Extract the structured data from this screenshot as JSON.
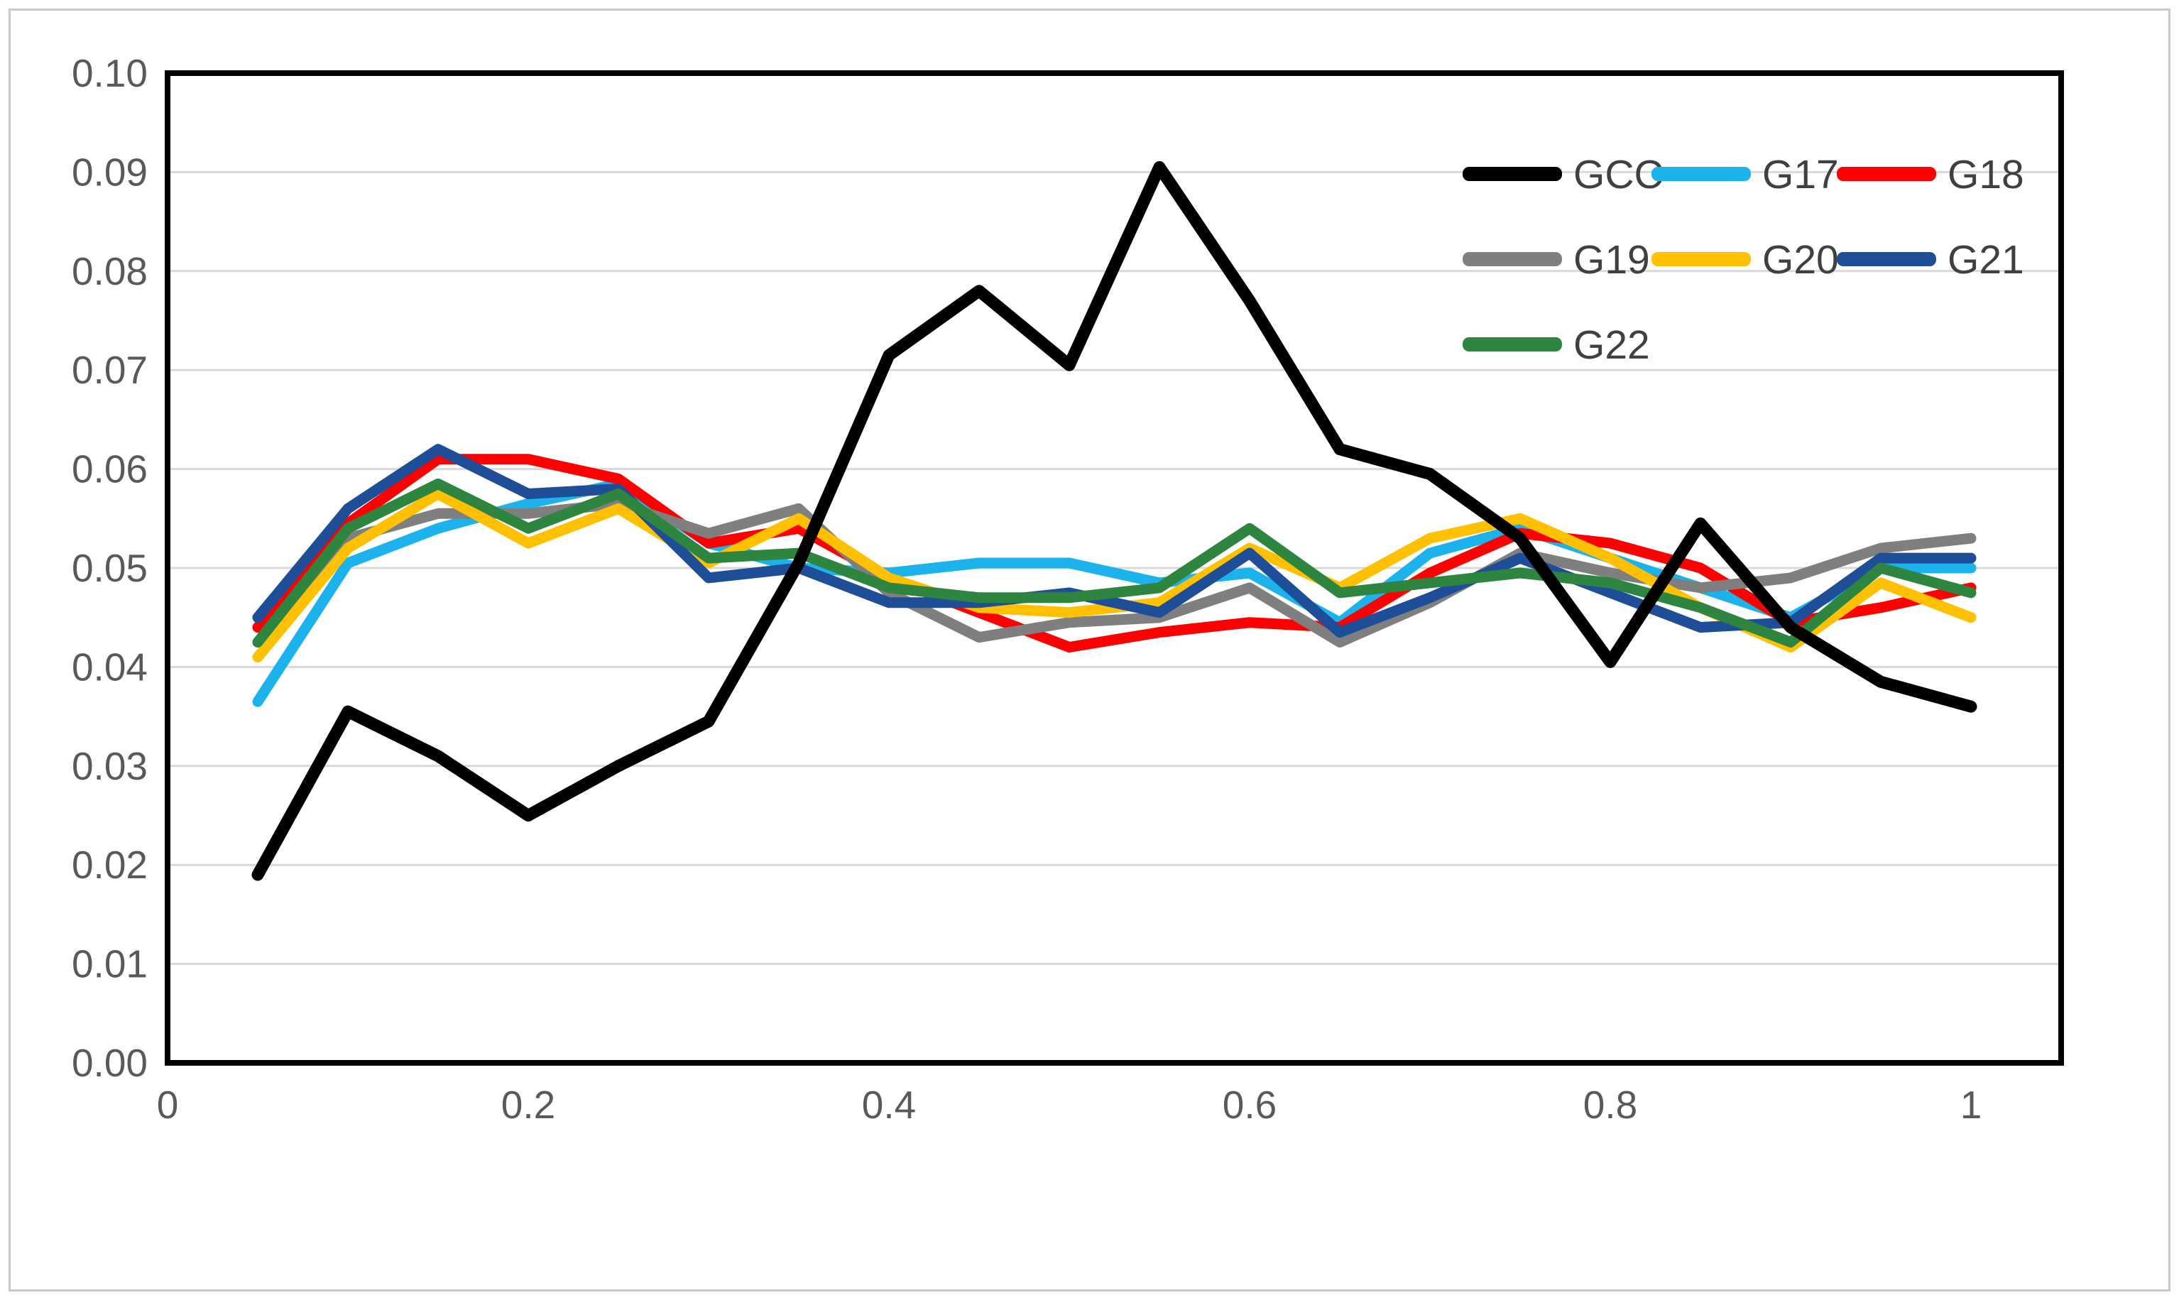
{
  "chart_data": {
    "type": "line",
    "title": "",
    "xlabel": "",
    "ylabel": "",
    "xlim": [
      0,
      1.05
    ],
    "ylim": [
      0,
      0.1
    ],
    "grid": "horizontal-only",
    "x": [
      0.05,
      0.1,
      0.15,
      0.2,
      0.25,
      0.3,
      0.35,
      0.4,
      0.45,
      0.5,
      0.55,
      0.6,
      0.65,
      0.7,
      0.75,
      0.8,
      0.85,
      0.9,
      0.95,
      1.0
    ],
    "series": [
      {
        "name": "GCC",
        "color": "#000000",
        "width": 17,
        "values": [
          0.019,
          0.0355,
          0.031,
          0.025,
          0.03,
          0.0345,
          0.0505,
          0.0715,
          0.078,
          0.0705,
          0.0905,
          0.077,
          0.062,
          0.0595,
          0.053,
          0.0405,
          0.0545,
          0.044,
          0.0385,
          0.036
        ]
      },
      {
        "name": "G17",
        "color": "#1cb2ec",
        "width": 15,
        "values": [
          0.0365,
          0.0505,
          0.054,
          0.0565,
          0.0585,
          0.0525,
          0.05,
          0.0495,
          0.0505,
          0.0505,
          0.0485,
          0.0495,
          0.0445,
          0.0515,
          0.054,
          0.051,
          0.048,
          0.045,
          0.05,
          0.05
        ]
      },
      {
        "name": "G18",
        "color": "#fe0000",
        "width": 15,
        "values": [
          0.044,
          0.0545,
          0.061,
          0.061,
          0.059,
          0.0525,
          0.054,
          0.049,
          0.0455,
          0.042,
          0.0435,
          0.0445,
          0.044,
          0.0495,
          0.0535,
          0.0525,
          0.05,
          0.0445,
          0.046,
          0.048
        ]
      },
      {
        "name": "G19",
        "color": "#7f7f7f",
        "width": 15,
        "values": [
          0.0425,
          0.053,
          0.0555,
          0.0555,
          0.0565,
          0.0535,
          0.056,
          0.0475,
          0.043,
          0.0445,
          0.045,
          0.048,
          0.0425,
          0.0465,
          0.0515,
          0.0495,
          0.048,
          0.049,
          0.052,
          0.053
        ]
      },
      {
        "name": "G20",
        "color": "#ffc000",
        "width": 15,
        "values": [
          0.041,
          0.052,
          0.0575,
          0.0525,
          0.056,
          0.0505,
          0.055,
          0.049,
          0.046,
          0.0455,
          0.0465,
          0.052,
          0.048,
          0.053,
          0.055,
          0.051,
          0.046,
          0.042,
          0.0485,
          0.045
        ]
      },
      {
        "name": "G21",
        "color": "#1f4e99",
        "width": 15,
        "values": [
          0.045,
          0.056,
          0.062,
          0.0575,
          0.058,
          0.049,
          0.05,
          0.0465,
          0.0465,
          0.0475,
          0.0455,
          0.0515,
          0.0435,
          0.047,
          0.051,
          0.0475,
          0.044,
          0.0445,
          0.051,
          0.051
        ]
      },
      {
        "name": "G22",
        "color": "#2e8540",
        "width": 15,
        "values": [
          0.0425,
          0.054,
          0.0585,
          0.054,
          0.0575,
          0.051,
          0.0515,
          0.048,
          0.047,
          0.047,
          0.048,
          0.054,
          0.0475,
          0.0485,
          0.0495,
          0.0485,
          0.046,
          0.0425,
          0.05,
          0.0475
        ]
      }
    ],
    "draw_order": [
      "G17",
      "G18",
      "G19",
      "G20",
      "G21",
      "G22",
      "GCC"
    ],
    "x_ticks": {
      "values": [
        0,
        0.2,
        0.4,
        0.6,
        0.8,
        1
      ],
      "labels": [
        "0",
        "0.2",
        "0.4",
        "0.6",
        "0.8",
        "1"
      ]
    },
    "y_ticks": {
      "values": [
        0,
        0.01,
        0.02,
        0.03,
        0.04,
        0.05,
        0.06,
        0.07,
        0.08,
        0.09,
        0.1
      ],
      "labels": [
        "0.00",
        "0.01",
        "0.02",
        "0.03",
        "0.04",
        "0.05",
        "0.06",
        "0.07",
        "0.08",
        "0.09",
        "0.10"
      ]
    },
    "legend_rows": [
      [
        "GCC",
        "G17",
        "G18"
      ],
      [
        "G19",
        "G20",
        "G21"
      ],
      [
        "G22"
      ]
    ],
    "legend_position": "top-right-inside"
  },
  "style": {
    "gridline_color": "#d9d9d9",
    "plot_border_color": "#000000",
    "tick_label_color": "#595959",
    "legend_label_color": "#404040",
    "frame_color": "#c9c9c9",
    "background": "#ffffff"
  }
}
